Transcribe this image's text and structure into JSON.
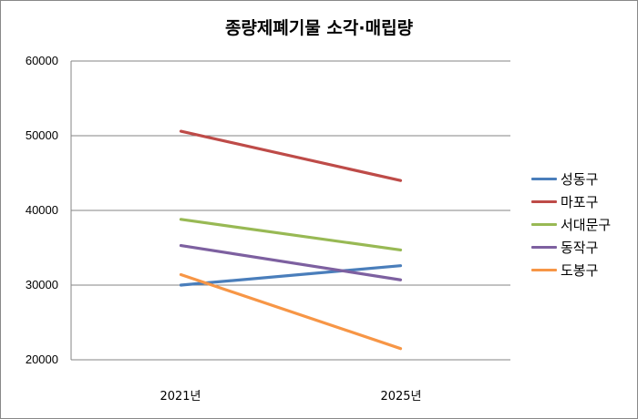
{
  "chart_data": {
    "type": "line",
    "title": "종량제폐기물 소각·매립량",
    "xlabel": "",
    "ylabel": "",
    "categories": [
      "2021년",
      "2025년"
    ],
    "ylim": [
      20000,
      60000
    ],
    "yticks": [
      "60000",
      "50000",
      "40000",
      "30000",
      "20000"
    ],
    "grid": true,
    "legend_position": "right",
    "series": [
      {
        "name": "성동구",
        "color": "#4a7ebb",
        "values": [
          30000,
          32600
        ]
      },
      {
        "name": "마포구",
        "color": "#be4b48",
        "values": [
          50600,
          44000
        ]
      },
      {
        "name": "서대문구",
        "color": "#98b954",
        "values": [
          38800,
          34700
        ]
      },
      {
        "name": "동작구",
        "color": "#7d60a0",
        "values": [
          35300,
          30700
        ]
      },
      {
        "name": "도봉구",
        "color": "#f79646",
        "values": [
          31400,
          21500
        ]
      }
    ]
  }
}
